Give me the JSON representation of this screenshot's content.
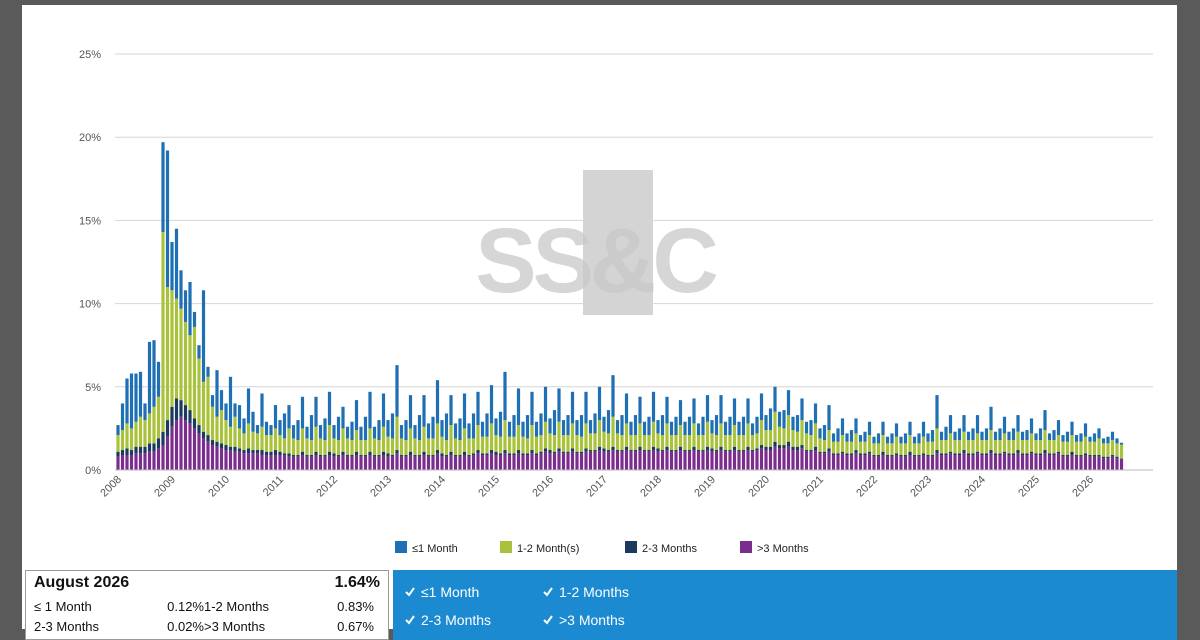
{
  "chart_data": {
    "type": "stacked-bar",
    "categories": [
      "2008",
      null,
      null,
      null,
      null,
      null,
      null,
      null,
      null,
      null,
      null,
      null,
      "2009",
      null,
      null,
      null,
      null,
      null,
      null,
      null,
      null,
      null,
      null,
      null,
      "2010",
      null,
      null,
      null,
      null,
      null,
      null,
      null,
      null,
      null,
      null,
      null,
      "2011",
      null,
      null,
      null,
      null,
      null,
      null,
      null,
      null,
      null,
      null,
      null,
      "2012",
      null,
      null,
      null,
      null,
      null,
      null,
      null,
      null,
      null,
      null,
      null,
      "2013",
      null,
      null,
      null,
      null,
      null,
      null,
      null,
      null,
      null,
      null,
      null,
      "2014",
      null,
      null,
      null,
      null,
      null,
      null,
      null,
      null,
      null,
      null,
      null,
      "2015",
      null,
      null,
      null,
      null,
      null,
      null,
      null,
      null,
      null,
      null,
      null,
      "2016",
      null,
      null,
      null,
      null,
      null,
      null,
      null,
      null,
      null,
      null,
      null,
      "2017",
      null,
      null,
      null,
      null,
      null,
      null,
      null,
      null,
      null,
      null,
      null,
      "2018",
      null,
      null,
      null,
      null,
      null,
      null,
      null,
      null,
      null,
      null,
      null,
      "2019",
      null,
      null,
      null,
      null,
      null,
      null,
      null,
      null,
      null,
      null,
      null,
      "2020",
      null,
      null,
      null,
      null,
      null,
      null,
      null,
      null,
      null,
      null,
      null,
      "2021",
      null,
      null,
      null,
      null,
      null,
      null,
      null,
      null,
      null,
      null,
      null,
      "2022",
      null,
      null,
      null,
      null,
      null,
      null,
      null,
      null,
      null,
      null,
      null,
      "2023",
      null,
      null,
      null,
      null,
      null,
      null,
      null,
      null,
      null,
      null,
      null,
      "2024",
      null,
      null,
      null,
      null,
      null,
      null,
      null,
      null,
      null,
      null,
      null,
      "2025",
      null,
      null,
      null,
      null,
      null,
      null,
      null,
      null,
      null,
      null,
      null,
      "2026",
      null,
      null,
      null,
      null,
      null,
      null,
      null
    ],
    "series": [
      {
        "name": "≤1 Month",
        "color": "#1f6fb5",
        "values": [
          0.6,
          1.6,
          2.7,
          3.3,
          2.9,
          2.7,
          1.0,
          4.3,
          4.0,
          2.1,
          5.4,
          8.2,
          2.9,
          4.2,
          2.3,
          1.9,
          3.2,
          0.9,
          0.8,
          5.5,
          0.6,
          0.7,
          2.8,
          1.2,
          1.0,
          3.0,
          0.8,
          1.4,
          0.9,
          2.1,
          1.2,
          0.5,
          2.0,
          0.8,
          0.6,
          1.4,
          0.9,
          1.5,
          1.4,
          0.8,
          1.2,
          1.9,
          0.7,
          1.5,
          1.8,
          0.8,
          1.3,
          2.0,
          0.8,
          1.4,
          1.3,
          0.7,
          1.1,
          1.8,
          0.8,
          1.4,
          2.2,
          0.7,
          1.2,
          2.0,
          1.0,
          1.5,
          3.1,
          0.8,
          1.2,
          2.0,
          0.8,
          1.5,
          1.9,
          0.9,
          1.3,
          2.6,
          1.0,
          1.6,
          1.8,
          0.9,
          1.3,
          2.1,
          0.9,
          1.5,
          2.0,
          0.9,
          1.4,
          2.3,
          1.0,
          1.5,
          2.9,
          0.9,
          1.3,
          2.2,
          0.9,
          1.4,
          2.0,
          0.9,
          1.3,
          2.1,
          0.9,
          1.5,
          2.0,
          0.9,
          1.2,
          1.9,
          0.9,
          1.3,
          1.9,
          0.8,
          1.2,
          2.0,
          0.9,
          1.4,
          2.5,
          0.8,
          1.2,
          1.8,
          0.8,
          1.2,
          1.6,
          0.8,
          1.1,
          1.8,
          0.8,
          1.2,
          1.6,
          0.8,
          1.1,
          1.5,
          0.8,
          1.1,
          1.5,
          0.7,
          1.1,
          1.6,
          0.8,
          1.2,
          1.7,
          0.8,
          1.1,
          1.6,
          0.8,
          1.1,
          1.5,
          0.7,
          1.0,
          1.6,
          0.9,
          1.3,
          1.5,
          0.9,
          1.1,
          1.5,
          0.8,
          1.0,
          1.3,
          0.7,
          0.9,
          1.2,
          0.6,
          0.9,
          1.5,
          0.5,
          0.8,
          1.0,
          0.5,
          0.7,
          0.9,
          0.4,
          0.6,
          0.8,
          0.4,
          0.6,
          0.8,
          0.4,
          0.6,
          0.8,
          0.4,
          0.6,
          0.8,
          0.4,
          0.6,
          0.9,
          0.5,
          0.7,
          2.0,
          0.5,
          0.8,
          1.1,
          0.5,
          0.7,
          1.0,
          0.5,
          0.7,
          1.1,
          0.5,
          0.7,
          1.4,
          0.5,
          0.7,
          1.0,
          0.5,
          0.7,
          1.0,
          0.5,
          0.6,
          0.9,
          0.4,
          0.7,
          1.2,
          0.4,
          0.6,
          0.9,
          0.4,
          0.6,
          0.8,
          0.4,
          0.5,
          0.8,
          0.3,
          0.5,
          0.6,
          0.3,
          0.4,
          0.5,
          0.3,
          0.12
        ]
      },
      {
        "name": "1-2 Month(s)",
        "color": "#a9c23b",
        "values": [
          1.0,
          1.2,
          1.5,
          1.3,
          1.5,
          1.8,
          1.6,
          1.8,
          2.2,
          2.5,
          12.0,
          8.0,
          7.0,
          6.0,
          5.5,
          5.0,
          4.5,
          5.5,
          4.0,
          3.0,
          3.5,
          2.0,
          1.5,
          2.0,
          1.5,
          1.2,
          1.8,
          1.2,
          1.0,
          1.5,
          1.1,
          1.0,
          1.4,
          1.0,
          1.0,
          1.3,
          1.0,
          0.9,
          1.5,
          1.0,
          0.9,
          1.4,
          1.0,
          0.9,
          1.5,
          1.0,
          0.9,
          1.6,
          0.9,
          0.9,
          1.4,
          1.0,
          0.9,
          1.3,
          0.9,
          0.9,
          1.4,
          1.0,
          0.9,
          1.5,
          1.0,
          1.0,
          2.0,
          1.0,
          0.9,
          1.4,
          1.0,
          0.9,
          1.5,
          1.0,
          1.0,
          1.6,
          1.0,
          0.9,
          1.6,
          1.0,
          0.9,
          1.4,
          1.0,
          0.9,
          1.5,
          1.0,
          1.0,
          1.6,
          1.0,
          1.0,
          1.8,
          1.0,
          1.0,
          1.5,
          1.0,
          0.9,
          1.5,
          1.0,
          1.0,
          1.6,
          1.0,
          1.0,
          1.6,
          1.0,
          1.0,
          1.5,
          1.0,
          0.9,
          1.5,
          1.0,
          1.0,
          1.6,
          1.0,
          1.0,
          1.8,
          1.0,
          0.9,
          1.4,
          0.9,
          0.9,
          1.4,
          0.9,
          0.9,
          1.5,
          0.9,
          0.9,
          1.4,
          0.9,
          0.9,
          1.3,
          0.9,
          0.9,
          1.4,
          0.9,
          0.9,
          1.5,
          0.9,
          0.9,
          1.4,
          0.9,
          0.9,
          1.3,
          0.9,
          0.9,
          1.4,
          0.9,
          0.9,
          1.5,
          1.0,
          1.0,
          1.8,
          1.1,
          1.0,
          1.6,
          1.0,
          0.9,
          1.5,
          1.0,
          0.9,
          1.4,
          0.8,
          0.7,
          1.1,
          0.7,
          0.7,
          1.0,
          0.7,
          0.7,
          1.0,
          0.7,
          0.7,
          1.0,
          0.7,
          0.7,
          1.0,
          0.7,
          0.7,
          1.0,
          0.7,
          0.7,
          1.0,
          0.7,
          0.7,
          1.0,
          0.8,
          0.8,
          1.3,
          0.8,
          0.8,
          1.1,
          0.8,
          0.8,
          1.1,
          0.8,
          0.8,
          1.1,
          0.8,
          0.8,
          1.2,
          0.8,
          0.8,
          1.1,
          0.8,
          0.8,
          1.1,
          0.8,
          0.8,
          1.1,
          0.8,
          0.8,
          1.2,
          0.8,
          0.8,
          1.0,
          0.8,
          0.8,
          1.0,
          0.8,
          0.8,
          1.0,
          0.8,
          0.8,
          1.0,
          0.8,
          0.8,
          0.9,
          0.8,
          0.83
        ]
      },
      {
        "name": "2-3 Months",
        "color": "#1b3a5e",
        "values": [
          0.3,
          0.3,
          0.4,
          0.3,
          0.4,
          0.4,
          0.4,
          0.5,
          0.5,
          0.6,
          0.8,
          1.0,
          1.2,
          1.3,
          1.0,
          0.9,
          0.8,
          0.6,
          0.5,
          0.4,
          0.4,
          0.3,
          0.3,
          0.3,
          0.3,
          0.2,
          0.3,
          0.2,
          0.2,
          0.3,
          0.2,
          0.2,
          0.3,
          0.2,
          0.2,
          0.3,
          0.2,
          0.1,
          0.2,
          0.1,
          0.1,
          0.2,
          0.1,
          0.1,
          0.2,
          0.1,
          0.1,
          0.2,
          0.2,
          0.1,
          0.2,
          0.1,
          0.1,
          0.2,
          0.1,
          0.1,
          0.2,
          0.1,
          0.1,
          0.2,
          0.2,
          0.1,
          0.2,
          0.1,
          0.1,
          0.2,
          0.1,
          0.1,
          0.2,
          0.1,
          0.1,
          0.2,
          0.2,
          0.1,
          0.2,
          0.1,
          0.1,
          0.2,
          0.1,
          0.1,
          0.2,
          0.1,
          0.1,
          0.2,
          0.2,
          0.1,
          0.2,
          0.1,
          0.1,
          0.2,
          0.1,
          0.1,
          0.2,
          0.1,
          0.1,
          0.2,
          0.2,
          0.1,
          0.2,
          0.1,
          0.1,
          0.2,
          0.1,
          0.1,
          0.2,
          0.1,
          0.1,
          0.2,
          0.2,
          0.1,
          0.2,
          0.1,
          0.1,
          0.2,
          0.1,
          0.1,
          0.2,
          0.1,
          0.1,
          0.2,
          0.2,
          0.1,
          0.2,
          0.1,
          0.1,
          0.2,
          0.1,
          0.1,
          0.2,
          0.1,
          0.1,
          0.2,
          0.2,
          0.1,
          0.2,
          0.1,
          0.1,
          0.2,
          0.1,
          0.1,
          0.2,
          0.1,
          0.1,
          0.2,
          0.2,
          0.2,
          0.3,
          0.2,
          0.2,
          0.3,
          0.2,
          0.2,
          0.2,
          0.1,
          0.1,
          0.2,
          0.1,
          0.1,
          0.2,
          0.1,
          0.1,
          0.1,
          0.1,
          0.1,
          0.2,
          0.1,
          0.1,
          0.1,
          0.1,
          0.1,
          0.2,
          0.1,
          0.1,
          0.1,
          0.1,
          0.1,
          0.2,
          0.1,
          0.1,
          0.1,
          0.1,
          0.1,
          0.2,
          0.1,
          0.1,
          0.1,
          0.1,
          0.1,
          0.2,
          0.1,
          0.1,
          0.1,
          0.1,
          0.1,
          0.2,
          0.1,
          0.1,
          0.1,
          0.1,
          0.1,
          0.2,
          0.1,
          0.1,
          0.1,
          0.1,
          0.1,
          0.2,
          0.1,
          0.1,
          0.1,
          0.1,
          0.1,
          0.2,
          0.1,
          0.1,
          0.1,
          0.1,
          0.1,
          0.1,
          0.1,
          0.1,
          0.1,
          0.1,
          0.02
        ]
      },
      {
        "name": ">3 Months",
        "color": "#7b2d8e",
        "values": [
          0.8,
          0.9,
          0.9,
          0.9,
          1.0,
          1.0,
          1.0,
          1.1,
          1.1,
          1.3,
          1.5,
          2.0,
          2.6,
          3.0,
          3.2,
          3.0,
          2.8,
          2.5,
          2.2,
          1.9,
          1.7,
          1.5,
          1.4,
          1.3,
          1.2,
          1.2,
          1.1,
          1.1,
          1.0,
          1.0,
          1.0,
          1.0,
          0.9,
          0.9,
          0.9,
          0.9,
          0.9,
          0.9,
          0.8,
          0.8,
          0.8,
          0.9,
          0.8,
          0.8,
          0.9,
          0.8,
          0.8,
          0.9,
          0.8,
          0.8,
          0.9,
          0.8,
          0.8,
          0.9,
          0.8,
          0.8,
          0.9,
          0.8,
          0.8,
          0.9,
          0.8,
          0.8,
          1.0,
          0.8,
          0.8,
          0.9,
          0.8,
          0.8,
          0.9,
          0.8,
          0.8,
          1.0,
          0.8,
          0.8,
          0.9,
          0.8,
          0.8,
          0.9,
          0.8,
          0.9,
          1.0,
          0.9,
          0.9,
          1.0,
          0.9,
          0.9,
          1.0,
          0.9,
          0.9,
          1.0,
          0.9,
          0.9,
          1.0,
          0.9,
          1.0,
          1.1,
          1.0,
          1.0,
          1.1,
          1.0,
          1.0,
          1.1,
          1.0,
          1.0,
          1.1,
          1.1,
          1.1,
          1.2,
          1.1,
          1.1,
          1.2,
          1.1,
          1.1,
          1.2,
          1.1,
          1.1,
          1.2,
          1.1,
          1.1,
          1.2,
          1.1,
          1.1,
          1.2,
          1.1,
          1.1,
          1.2,
          1.1,
          1.1,
          1.2,
          1.1,
          1.1,
          1.2,
          1.1,
          1.1,
          1.2,
          1.1,
          1.1,
          1.2,
          1.1,
          1.1,
          1.2,
          1.1,
          1.2,
          1.3,
          1.2,
          1.2,
          1.4,
          1.3,
          1.3,
          1.4,
          1.2,
          1.2,
          1.3,
          1.1,
          1.1,
          1.2,
          1.0,
          1.0,
          1.1,
          0.9,
          0.9,
          1.0,
          0.9,
          0.9,
          1.0,
          0.9,
          0.9,
          1.0,
          0.8,
          0.8,
          0.9,
          0.8,
          0.8,
          0.9,
          0.8,
          0.8,
          0.9,
          0.8,
          0.8,
          0.9,
          0.8,
          0.8,
          1.0,
          0.9,
          0.9,
          1.0,
          0.9,
          0.9,
          1.0,
          0.9,
          0.9,
          1.0,
          0.9,
          0.9,
          1.0,
          0.9,
          0.9,
          1.0,
          0.9,
          0.9,
          1.0,
          0.9,
          0.9,
          1.0,
          0.9,
          0.9,
          1.0,
          0.9,
          0.9,
          1.0,
          0.8,
          0.8,
          0.9,
          0.8,
          0.8,
          0.9,
          0.8,
          0.8,
          0.8,
          0.7,
          0.7,
          0.8,
          0.7,
          0.67
        ]
      }
    ],
    "ylim": [
      0,
      25
    ],
    "yticks": [
      {
        "value": 0,
        "label": "0%"
      },
      {
        "value": 5,
        "label": "5%"
      },
      {
        "value": 10,
        "label": "10%"
      },
      {
        "value": 15,
        "label": "15%"
      },
      {
        "value": 20,
        "label": "20%"
      },
      {
        "value": 25,
        "label": "25%"
      }
    ],
    "grid": true,
    "legend": "bottom",
    "watermark": "SS&C"
  },
  "summary": {
    "title": "August 2026",
    "total": "1.64%",
    "rows": [
      [
        "≤ 1 Month",
        "0.12%",
        "1-2 Months",
        "0.83%"
      ],
      [
        "2-3 Months",
        "0.02%",
        ">3 Months",
        "0.67%"
      ]
    ]
  },
  "filters": [
    "≤1 Month",
    "1-2 Months",
    "2-3 Months",
    ">3 Months"
  ]
}
